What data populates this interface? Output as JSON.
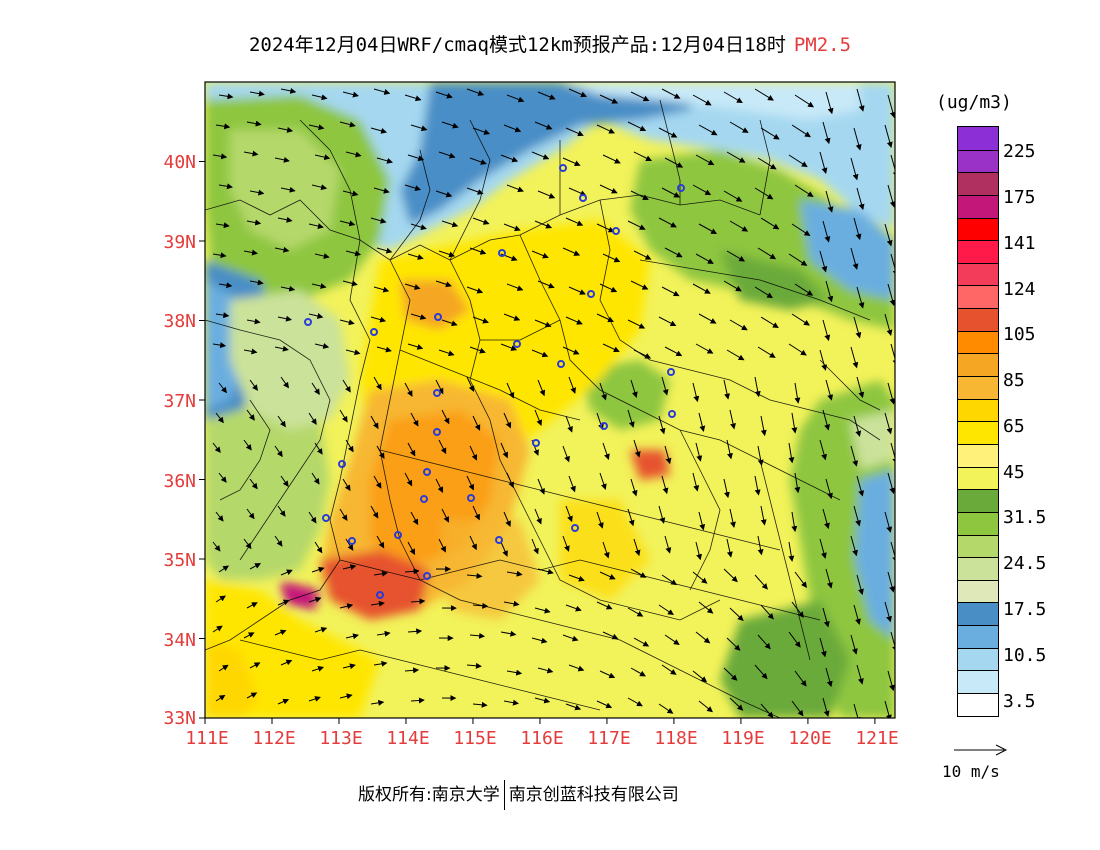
{
  "title": {
    "main": "2024年12月04日WRF/cmaq模式12km预报产品:12月04日18时",
    "product": "PM2.5"
  },
  "axes": {
    "lat_labels": [
      "40N",
      "39N",
      "38N",
      "37N",
      "36N",
      "35N",
      "34N",
      "33N"
    ],
    "lon_labels": [
      "111E",
      "112E",
      "113E",
      "114E",
      "115E",
      "116E",
      "117E",
      "118E",
      "119E",
      "120E",
      "121E"
    ],
    "lat_range": [
      33,
      41
    ],
    "lon_range": [
      111,
      121.3
    ]
  },
  "colorbar": {
    "unit": "(ug/m3)",
    "labels": [
      "225",
      "175",
      "141",
      "124",
      "105",
      "85",
      "65",
      "45",
      "31.5",
      "24.5",
      "17.5",
      "10.5",
      "3.5"
    ],
    "colors": [
      "#8c2fd6",
      "#9b32c8",
      "#b03060",
      "#c4177a",
      "#ff0000",
      "#ff1a4a",
      "#f23c5a",
      "#ff6666",
      "#e6522d",
      "#ff8c00",
      "#f5a623",
      "#f7b733",
      "#ffd700",
      "#ffe600",
      "#fff17a",
      "#f2f25a",
      "#6aaa3a",
      "#8ec63f",
      "#b5d86a",
      "#cbe29a",
      "#dfe8b8",
      "#4a8ec6",
      "#6aaee0",
      "#a5d8f0",
      "#c8e9f8",
      "#ffffff"
    ]
  },
  "vector": {
    "label": "10 m/s",
    "speed": 10
  },
  "copyright": {
    "left": "版权所有:南京大学",
    "right": "南京创蓝科技有限公司"
  },
  "colors": {
    "label_red": "#e43b3b",
    "site_marker": "#2a3cd8",
    "boundary": "#000000"
  }
}
